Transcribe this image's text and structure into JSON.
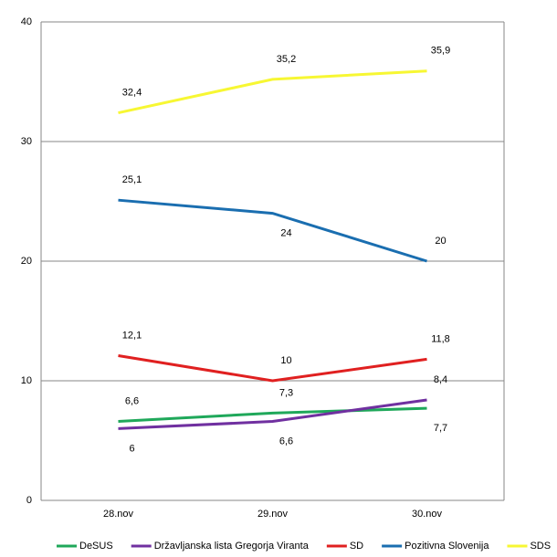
{
  "chart_data": {
    "type": "line",
    "categories": [
      "28.nov",
      "29.nov",
      "30.nov"
    ],
    "series": [
      {
        "name": "DeSUS",
        "color": "#1fa85a",
        "values": [
          6.6,
          7.3,
          7.7
        ],
        "value_labels": [
          "6,6",
          "7,3",
          "7,7"
        ]
      },
      {
        "name": "Državljanska lista Gregorja Viranta",
        "color": "#7030a0",
        "values": [
          6,
          6.6,
          8.4
        ],
        "value_labels": [
          "6",
          "6,6",
          "8,4"
        ]
      },
      {
        "name": "SD",
        "color": "#e02020",
        "values": [
          12.1,
          10,
          11.8
        ],
        "value_labels": [
          "12,1",
          "10",
          "11,8"
        ]
      },
      {
        "name": "Pozitivna Slovenija",
        "color": "#1a6eb0",
        "values": [
          25.1,
          24,
          20
        ],
        "value_labels": [
          "25,1",
          "24",
          "20"
        ]
      },
      {
        "name": "SDS",
        "color": "#f7f733",
        "values": [
          32.4,
          35.2,
          35.9
        ],
        "value_labels": [
          "32,4",
          "35,2",
          "35,9"
        ]
      }
    ],
    "ylim": [
      0,
      40
    ],
    "yticks": [
      0,
      10,
      20,
      30,
      40
    ],
    "grid": true,
    "legend": "bottom"
  }
}
